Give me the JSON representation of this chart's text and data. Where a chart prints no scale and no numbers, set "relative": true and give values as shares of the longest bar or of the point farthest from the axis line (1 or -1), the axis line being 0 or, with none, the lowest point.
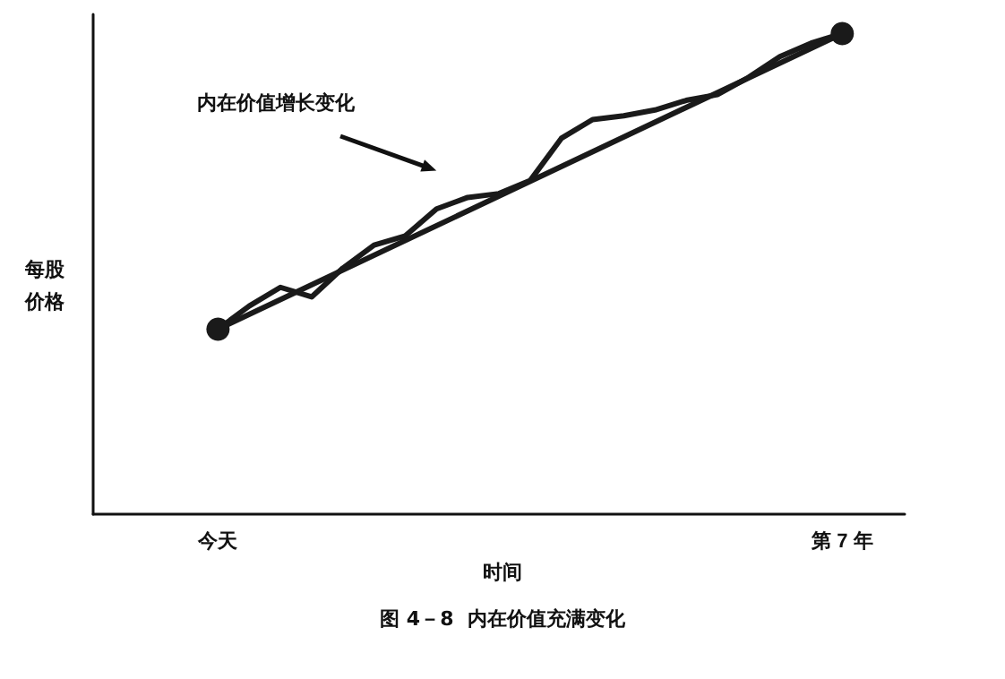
{
  "chart_data": {
    "type": "line",
    "relative": true,
    "title": "图 4－8  内在价值充满变化",
    "xlabel": "时间",
    "ylabel": "每股价格",
    "annotations": [
      "内在价值增长变化"
    ],
    "categories": [
      null,
      null,
      null,
      null,
      "今天",
      null,
      null,
      null,
      null,
      null,
      null,
      null,
      null,
      null,
      null,
      null,
      null,
      null,
      null,
      null,
      null,
      null,
      null,
      null,
      "第 7 年",
      null,
      null
    ],
    "series": [
      {
        "color": "#1a1a1a",
        "marker": "none",
        "values": [
          null,
          null,
          null,
          null,
          0.385,
          0.433,
          0.472,
          0.452,
          0.512,
          0.56,
          0.579,
          0.635,
          0.659,
          0.667,
          0.694,
          0.782,
          0.821,
          0.829,
          0.841,
          0.861,
          0.873,
          0.909,
          0.952,
          0.98,
          1,
          null,
          null
        ]
      },
      {
        "color": "#1a1a1a",
        "marker": "circle",
        "values": [
          null,
          null,
          null,
          null,
          0.385,
          null,
          null,
          null,
          null,
          null,
          null,
          null,
          null,
          null,
          null,
          null,
          null,
          null,
          null,
          null,
          null,
          null,
          null,
          null,
          1,
          null,
          null
        ]
      }
    ],
    "grid": false,
    "line_style": "solid"
  }
}
